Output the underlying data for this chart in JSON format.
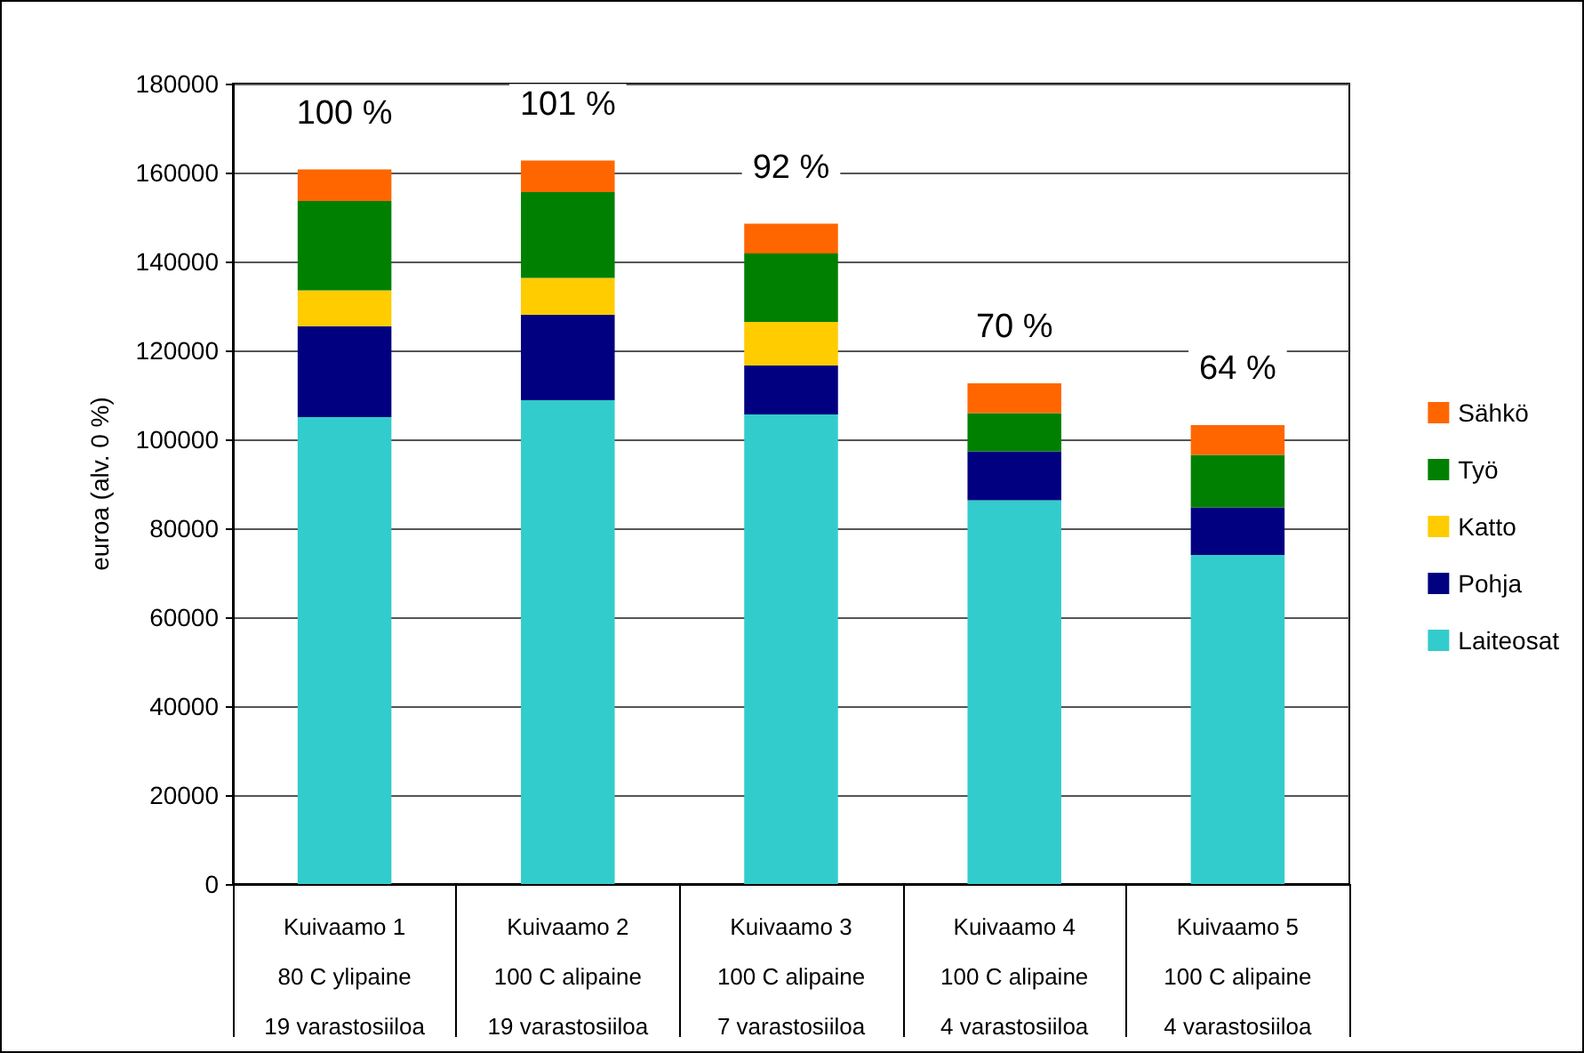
{
  "chart_data": {
    "type": "bar",
    "stacked": true,
    "ylabel": "euroa (alv. 0 %)",
    "categories": [
      "Kuivaamo 1\n80 C ylipaine\n19 varastosiiloa",
      "Kuivaamo 2\n100 C alipaine\n19 varastosiiloa",
      "Kuivaamo 3\n100 C alipaine\n7 varastosiiloa",
      "Kuivaamo 4\n100 C alipaine\n4 varastosiiloa",
      "Kuivaamo 5\n100 C alipaine\n4 varastosiiloa"
    ],
    "series": [
      {
        "name": "Laiteosat",
        "color": "#33cccc",
        "values": [
          105000,
          108800,
          105600,
          86300,
          74000
        ]
      },
      {
        "name": "Pohja",
        "color": "#000080",
        "values": [
          20400,
          19200,
          11000,
          11000,
          10700
        ]
      },
      {
        "name": "Katto",
        "color": "#ffcc00",
        "values": [
          8100,
          8300,
          9800,
          0,
          0
        ]
      },
      {
        "name": "Työ",
        "color": "#008000",
        "values": [
          20100,
          19300,
          15400,
          8600,
          11800
        ]
      },
      {
        "name": "Sähkö",
        "color": "#ff6600",
        "values": [
          7100,
          7100,
          6700,
          6700,
          6700
        ]
      }
    ],
    "ylim": [
      0,
      180000
    ],
    "yticks": [
      0,
      20000,
      40000,
      60000,
      80000,
      100000,
      120000,
      140000,
      160000,
      180000
    ],
    "grid": "y",
    "legend": "right",
    "annotations": [
      {
        "text": "100 %",
        "x": "Kuivaamo 1\n80 C ylipaine\n19 varastosiiloa",
        "y": 160700
      },
      {
        "text": "101 %",
        "x": "Kuivaamo 2\n100 C alipaine\n19 varastosiiloa",
        "y": 162700
      },
      {
        "text": "92 %",
        "x": "Kuivaamo 3\n100 C alipaine\n7 varastosiiloa",
        "y": 148500
      },
      {
        "text": "70 %",
        "x": "Kuivaamo 4\n100 C alipaine\n4 varastosiiloa",
        "y": 112600
      },
      {
        "text": "64 %",
        "x": "Kuivaamo 5\n100 C alipaine\n4 varastosiiloa",
        "y": 103200
      }
    ]
  }
}
